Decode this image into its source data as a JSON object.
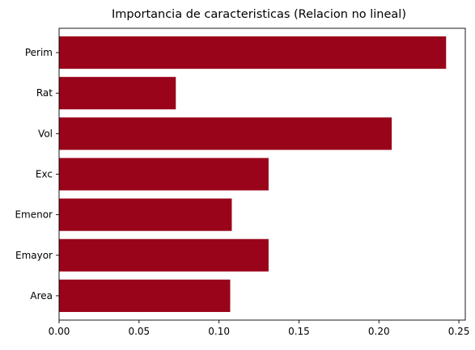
{
  "chart_data": {
    "type": "bar",
    "orientation": "horizontal",
    "title": "Importancia de caracteristicas (Relacion no lineal)",
    "xlabel": "",
    "ylabel": "",
    "categories": [
      "Area",
      "Emayor",
      "Emenor",
      "Exc",
      "Vol",
      "Rat",
      "Perim"
    ],
    "values": [
      0.107,
      0.131,
      0.108,
      0.131,
      0.208,
      0.073,
      0.242
    ],
    "xlim": [
      0,
      0.254
    ],
    "x_ticks": [
      0.0,
      0.05,
      0.1,
      0.15,
      0.2,
      0.25
    ],
    "x_tick_labels": [
      "0.00",
      "0.05",
      "0.10",
      "0.15",
      "0.20",
      "0.25"
    ],
    "bar_color": "#99041a",
    "grid": false,
    "legend": "none"
  }
}
